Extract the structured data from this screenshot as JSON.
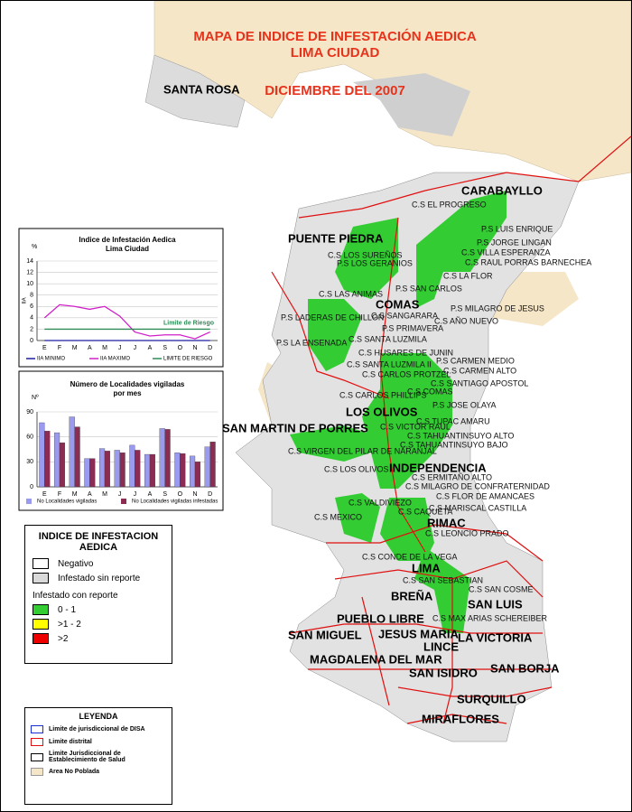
{
  "header": {
    "lines": [
      "MAPA DE INDICE DE INFESTACIÓN AEDICA",
      "LIMA CIUDAD",
      "DICIEMBRE DEL 2007"
    ]
  },
  "map_labels": {
    "districts": [
      "SANTA ROSA",
      "CARABAYLLO",
      "PUENTE PIEDRA",
      "COMAS",
      "LOS OLIVOS",
      "SAN MARTIN DE PORRES",
      "INDEPENDENCIA",
      "RIMAC",
      "LIMA",
      "BREÑA",
      "SAN LUIS",
      "PUEBLO LIBRE",
      "SAN MIGUEL",
      "JESUS MARIA",
      "LA VICTORIA",
      "LINCE",
      "MAGDALENA DEL MAR",
      "SAN BORJA",
      "SAN ISIDRO",
      "SURQUILLO",
      "MIRAFLORES"
    ],
    "health_centers": [
      "C.S EL PROGRESO",
      "P.S LUIS ENRIQUE",
      "P.S JORGE LINGAN",
      "C.S VILLA ESPERANZA",
      "C.S RAUL PORRAS BARNECHEA",
      "C.S LOS SUREÑOS",
      "P.S LOS GERANIOS",
      "C.S LA FLOR",
      "P.S SAN CARLOS",
      "C.S LAS ANIMAS",
      "P.S MILAGRO DE JESUS",
      "P.S LADERAS DE CHILLON",
      "C.S SANGARARA",
      "C.S AÑO NUEVO",
      "P.S PRIMAVERA",
      "C.S SANTA LUZMILA",
      "P.S LA ENSENADA",
      "C.S HUSARES DE JUNIN",
      "P.S CARMEN MEDIO",
      "C.S SANTA LUZMILA II",
      "C.S CARMEN ALTO",
      "C.S CARLOS PROTZEL",
      "C.S SANTIAGO APOSTOL",
      "C.S COMAS",
      "C.S CARLOS PHILLIPS",
      "P.S JOSE OLAYA",
      "C.S VICTOR RAUL",
      "C.S TUPAC AMARU",
      "C.S TAHUANTINSUYO ALTO",
      "C.S TAHUANTINSUYO BAJO",
      "C.S VIRGEN DEL PILAR DE NARANJAL",
      "C.S LOS OLIVOS",
      "C.S ERMITAÑO ALTO",
      "C.S MILAGRO DE CONFRATERNIDAD",
      "C.S FLOR DE AMANCAES",
      "C.S VALDIVIEZO",
      "C.S CAQUETA",
      "C.S MARISCAL CASTILLA",
      "C.S MEXICO",
      "C.S LEONCIO PRADO",
      "C.S CONDE DE LA VEGA",
      "C.S SAN SEBASTIAN",
      "C.S SAN COSME",
      "C.S MAX ARIAS SCHEREIBER"
    ]
  },
  "chart_data": [
    {
      "type": "line",
      "title": [
        "Indice de Infestación Aedica",
        "Lima Ciudad"
      ],
      "unit_label": "%",
      "y_label": "IIA",
      "categories": [
        "E",
        "F",
        "M",
        "A",
        "M",
        "J",
        "J",
        "A",
        "S",
        "O",
        "N",
        "D"
      ],
      "ylim": [
        0,
        14
      ],
      "yticks": [
        0,
        2,
        4,
        6,
        8,
        10,
        12,
        14
      ],
      "grid": true,
      "annotation": "Limite de Riesgo",
      "series": [
        {
          "name": "IIA MINIMO",
          "color": "#1f1fa0",
          "values": [
            0,
            0,
            0,
            0,
            0,
            0,
            0,
            0,
            0,
            0,
            0,
            0
          ]
        },
        {
          "name": "IIA MAXIMO",
          "color": "#d020c8",
          "values": [
            4,
            6.3,
            6,
            5.5,
            6,
            4.3,
            1.5,
            0.8,
            1,
            1,
            0.3,
            1.5
          ]
        },
        {
          "name": "LIMITE DE RIESGO",
          "color": "#2e8b57",
          "values": [
            2,
            2,
            2,
            2,
            2,
            2,
            2,
            2,
            2,
            2,
            2,
            2
          ]
        }
      ]
    },
    {
      "type": "bar",
      "title": [
        "Número de Localidades vigiladas",
        "por mes"
      ],
      "unit_label": "Nº",
      "categories": [
        "E",
        "F",
        "M",
        "A",
        "M",
        "J",
        "J",
        "A",
        "S",
        "O",
        "N",
        "D"
      ],
      "ylim": [
        0,
        90
      ],
      "yticks": [
        0,
        30,
        60,
        90
      ],
      "grid": true,
      "series": [
        {
          "name": "No Localidades vigiladas",
          "color": "#9a9aee",
          "values": [
            77,
            65,
            84,
            34,
            46,
            44,
            50,
            39,
            70,
            41,
            37,
            48
          ]
        },
        {
          "name": "No Localidades vigiladas infestadas",
          "color": "#8b2d52",
          "values": [
            67,
            53,
            72,
            34,
            43,
            41,
            44,
            39,
            69,
            40,
            30,
            54
          ]
        }
      ]
    }
  ],
  "legend": {
    "title_lines": [
      "INDICE DE INFESTACION",
      "AEDICA"
    ],
    "items": [
      {
        "label": "Negativo",
        "color": "#ffffff"
      },
      {
        "label": "Infestado sin reporte",
        "color": "#d9d9d9"
      }
    ],
    "subtitle": "Infestado con reporte",
    "levels": [
      {
        "label": "0 - 1",
        "color": "#33cc33"
      },
      {
        "label": ">1 - 2",
        "color": "#ffff00"
      },
      {
        "label": ">2",
        "color": "#ee0000"
      }
    ]
  },
  "leyenda": {
    "title": "LEYENDA",
    "items": [
      {
        "label": "Limite de jurisdiccional de DISA",
        "color": "#1a2fd0"
      },
      {
        "label": "Limite distrital",
        "color": "#e01010"
      },
      {
        "label": "Limite Jurisdiccional de Establecimiento de Salud",
        "color": "#000000"
      },
      {
        "label": "Area No Poblada",
        "color": "#f5e6c8"
      }
    ]
  }
}
